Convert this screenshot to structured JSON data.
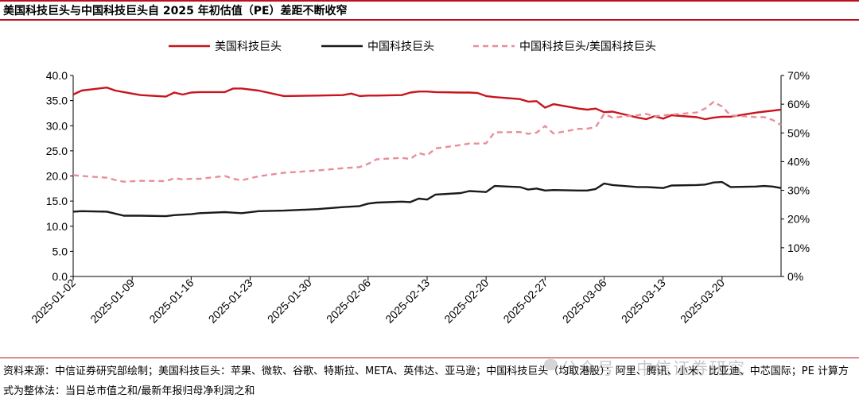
{
  "header": {
    "title": "美国科技巨头与中国科技巨头自 2025 年初估值（PE）差距不断收窄"
  },
  "footer": {
    "source": "资料来源：中信证券研究部绘制；美国科技巨头：苹果、微软、谷歌、特斯拉、META、英伟达、亚马逊；中国科技巨头（均取港股）：阿里、腾讯、小米、比亚迪、中芯国际；PE 计算方式为整体法：当日总市值之和/最新年报归母净利润之和",
    "watermark": "公众号 · 中信证券研究"
  },
  "chart_data": {
    "type": "line",
    "title": "美国科技巨头与中国科技巨头自 2025 年初估值（PE）差距不断收窄",
    "legend_position": "top",
    "grid": false,
    "x_ticks": [
      "2025-01-02",
      "2025-01-09",
      "2025-01-16",
      "2025-01-23",
      "2025-01-30",
      "2025-02-06",
      "2025-02-13",
      "2025-02-20",
      "2025-02-27",
      "2025-03-06",
      "2025-03-13",
      "2025-03-20"
    ],
    "y_left": {
      "ylim": [
        0,
        40
      ],
      "ticks": [
        "0.0",
        "5.0",
        "10.0",
        "15.0",
        "20.0",
        "25.0",
        "30.0",
        "35.0",
        "40.0"
      ]
    },
    "y_right": {
      "ylim": [
        0,
        70
      ],
      "ticks": [
        "0%",
        "10%",
        "20%",
        "30%",
        "40%",
        "50%",
        "60%",
        "70%"
      ]
    },
    "dates": [
      "2025-01-02",
      "2025-01-03",
      "2025-01-06",
      "2025-01-07",
      "2025-01-08",
      "2025-01-10",
      "2025-01-13",
      "2025-01-14",
      "2025-01-15",
      "2025-01-16",
      "2025-01-17",
      "2025-01-20",
      "2025-01-21",
      "2025-01-22",
      "2025-01-24",
      "2025-01-27",
      "2025-01-31",
      "2025-02-03",
      "2025-02-04",
      "2025-02-05",
      "2025-02-06",
      "2025-02-07",
      "2025-02-10",
      "2025-02-11",
      "2025-02-12",
      "2025-02-13",
      "2025-02-14",
      "2025-02-17",
      "2025-02-18",
      "2025-02-19",
      "2025-02-20",
      "2025-02-21",
      "2025-02-24",
      "2025-02-25",
      "2025-02-26",
      "2025-02-27",
      "2025-02-28",
      "2025-03-03",
      "2025-03-04",
      "2025-03-05",
      "2025-03-06",
      "2025-03-07",
      "2025-03-10",
      "2025-03-11",
      "2025-03-12",
      "2025-03-13",
      "2025-03-14",
      "2025-03-17",
      "2025-03-18",
      "2025-03-19",
      "2025-03-20",
      "2025-03-21",
      "2025-03-24",
      "2025-03-25",
      "2025-03-26",
      "2025-03-27"
    ],
    "series": [
      {
        "name": "美国科技巨头",
        "axis": "left",
        "color": "#c8141e",
        "dash": false,
        "values": [
          36.2,
          37.0,
          37.6,
          37.0,
          36.7,
          36.1,
          35.8,
          36.6,
          36.2,
          36.6,
          36.7,
          36.7,
          37.4,
          37.4,
          37.0,
          35.9,
          36.0,
          36.1,
          36.4,
          35.9,
          36.0,
          36.0,
          36.1,
          36.6,
          36.8,
          36.8,
          36.7,
          36.6,
          36.6,
          36.5,
          35.9,
          35.7,
          35.3,
          34.8,
          34.9,
          33.6,
          34.3,
          33.4,
          33.2,
          33.4,
          32.7,
          32.8,
          31.6,
          31.3,
          31.9,
          31.4,
          32.1,
          31.7,
          31.3,
          31.6,
          31.8,
          31.8,
          32.6,
          32.8,
          33.0,
          33.2
        ]
      },
      {
        "name": "中国科技巨头",
        "axis": "left",
        "color": "#1a1a1a",
        "dash": false,
        "values": [
          12.9,
          13.0,
          12.9,
          12.5,
          12.1,
          12.1,
          12.0,
          12.2,
          12.3,
          12.4,
          12.6,
          12.8,
          12.7,
          12.6,
          13.0,
          13.1,
          13.4,
          13.8,
          13.9,
          14.0,
          14.5,
          14.7,
          14.9,
          14.8,
          15.5,
          15.3,
          16.3,
          16.6,
          17.0,
          16.9,
          16.8,
          18.0,
          17.8,
          17.3,
          17.5,
          17.1,
          17.2,
          17.1,
          17.1,
          17.4,
          18.5,
          18.2,
          17.8,
          17.8,
          17.7,
          17.6,
          18.1,
          18.2,
          18.3,
          18.7,
          18.8,
          17.8,
          17.9,
          18.0,
          17.9,
          17.6
        ]
      },
      {
        "name": "中国科技巨头/美国科技巨头",
        "axis": "right",
        "color": "#e88e9a",
        "dash": true,
        "values": [
          35.3,
          35.0,
          34.4,
          33.6,
          33.0,
          33.3,
          33.2,
          34.2,
          33.8,
          34.0,
          34.0,
          35.0,
          34.0,
          33.5,
          34.9,
          36.1,
          36.9,
          37.7,
          37.9,
          38.1,
          39.2,
          40.8,
          41.3,
          40.9,
          43.0,
          42.2,
          44.6,
          45.8,
          46.3,
          46.3,
          46.4,
          50.2,
          50.3,
          49.7,
          50.1,
          52.4,
          49.8,
          51.4,
          51.5,
          52.0,
          56.6,
          55.3,
          56.2,
          56.6,
          55.8,
          56.1,
          56.4,
          57.1,
          58.5,
          60.8,
          59.2,
          56.1,
          55.5,
          55.5,
          54.5,
          52.7
        ]
      }
    ]
  }
}
